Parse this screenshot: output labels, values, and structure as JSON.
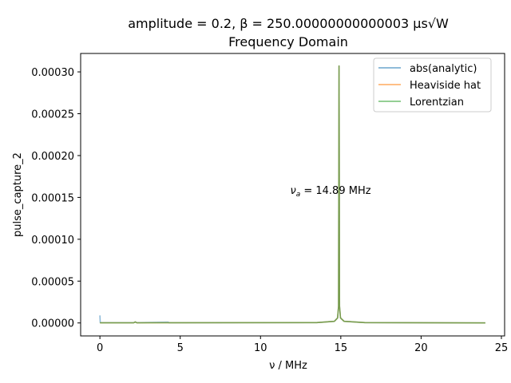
{
  "chart_data": {
    "type": "line",
    "title_line1": "amplitude = 0.2, β = 250.00000000000003 μs√W",
    "title_line2": "Frequency Domain",
    "xlabel": "ν / MHz",
    "ylabel": "pulse_capture_2",
    "xlim": [
      -1.2,
      25.2
    ],
    "ylim": [
      -1.55e-05,
      0.000322
    ],
    "x_ticks": [
      0,
      5,
      10,
      15,
      20,
      25
    ],
    "x_tick_labels": [
      "0",
      "5",
      "10",
      "15",
      "20",
      "25"
    ],
    "y_ticks": [
      0,
      5e-05,
      0.0001,
      0.00015,
      0.0002,
      0.00025,
      0.0003
    ],
    "y_tick_labels": [
      "0.00000",
      "0.00005",
      "0.00010",
      "0.00015",
      "0.00020",
      "0.00025",
      "0.00030"
    ],
    "annotation": {
      "text": "νa = 14.89 MHz",
      "x": 14.89,
      "y": 0.000155
    },
    "grid": false,
    "legend_position": "top-right",
    "peak_center": 14.89,
    "series": [
      {
        "name": "abs(analytic)",
        "color": "#1f77b4",
        "opacity": 0.5,
        "x": [
          0,
          0.02,
          0.05,
          2.1,
          2.2,
          2.3,
          4.25,
          4.3,
          13.5,
          14.6,
          14.8,
          14.86,
          14.89,
          14.92,
          14.98,
          15.2,
          16.5,
          24
        ],
        "y": [
          9e-06,
          5e-07,
          3e-07,
          3e-07,
          1.2e-06,
          3e-07,
          1e-06,
          3e-07,
          4e-07,
          2e-06,
          6e-06,
          2e-05,
          0.000307,
          2e-05,
          6e-06,
          2e-06,
          4e-07,
          1e-07
        ]
      },
      {
        "name": "Heaviside hat",
        "color": "#ff7f0e",
        "opacity": 0.5,
        "x": [
          0,
          2.1,
          2.2,
          2.3,
          13.5,
          14.6,
          14.8,
          14.86,
          14.89,
          14.92,
          14.98,
          15.2,
          16.5,
          24
        ],
        "y": [
          2e-07,
          2e-07,
          1.2e-06,
          2e-07,
          4e-07,
          2e-06,
          6e-06,
          2e-05,
          0.000307,
          2e-05,
          6e-06,
          2e-06,
          4e-07,
          1e-07
        ]
      },
      {
        "name": "Lorentzian",
        "color": "#2ca02c",
        "opacity": 0.5,
        "x": [
          0,
          2.1,
          2.2,
          2.3,
          13.5,
          14.6,
          14.8,
          14.86,
          14.89,
          14.92,
          14.98,
          15.2,
          16.5,
          24
        ],
        "y": [
          2e-07,
          2e-07,
          1.2e-06,
          2e-07,
          4e-07,
          2e-06,
          6e-06,
          2e-05,
          0.000307,
          2e-05,
          6e-06,
          2e-06,
          4e-07,
          1e-07
        ]
      }
    ]
  }
}
